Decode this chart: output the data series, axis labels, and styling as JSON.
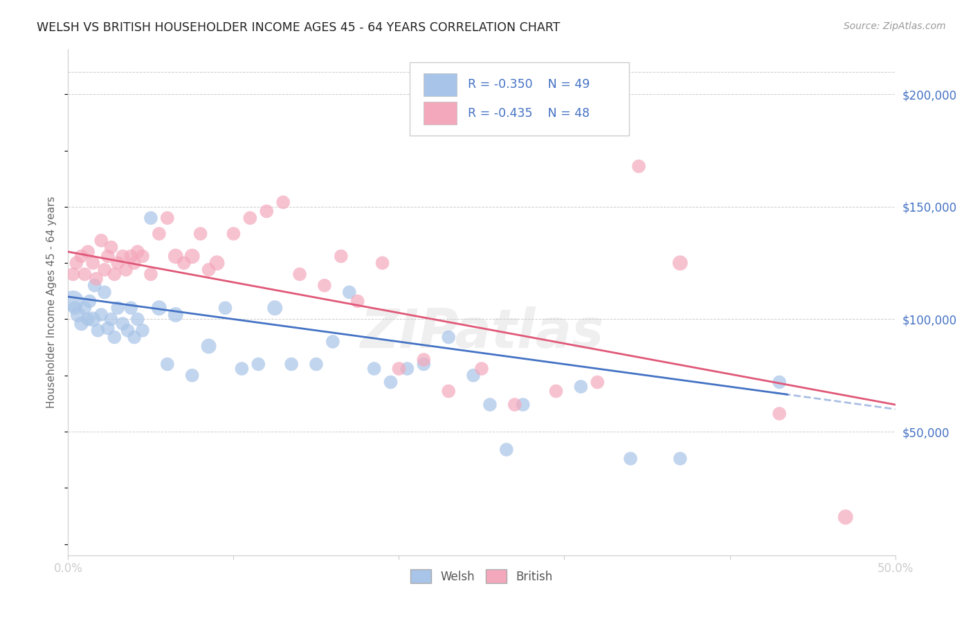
{
  "title": "WELSH VS BRITISH HOUSEHOLDER INCOME AGES 45 - 64 YEARS CORRELATION CHART",
  "source": "Source: ZipAtlas.com",
  "ylabel": "Householder Income Ages 45 - 64 years",
  "xlim": [
    0.0,
    0.5
  ],
  "ylim": [
    -5000,
    220000
  ],
  "ytick_labels_right": [
    "$50,000",
    "$100,000",
    "$150,000",
    "$200,000"
  ],
  "ytick_values_right": [
    50000,
    100000,
    150000,
    200000
  ],
  "welsh_color": "#a8c4e8",
  "british_color": "#f4a8bc",
  "welsh_line_color": "#4472c4",
  "british_line_color": "#e05878",
  "welsh_R": -0.35,
  "welsh_N": 49,
  "british_R": -0.435,
  "british_N": 48,
  "background_color": "#ffffff",
  "grid_color": "#cccccc",
  "watermark": "ZIPatlas",
  "welsh_x": [
    0.003,
    0.004,
    0.006,
    0.008,
    0.01,
    0.012,
    0.013,
    0.015,
    0.016,
    0.018,
    0.02,
    0.022,
    0.024,
    0.026,
    0.028,
    0.03,
    0.033,
    0.036,
    0.038,
    0.04,
    0.042,
    0.045,
    0.05,
    0.055,
    0.06,
    0.065,
    0.075,
    0.085,
    0.095,
    0.105,
    0.115,
    0.125,
    0.135,
    0.15,
    0.16,
    0.17,
    0.185,
    0.195,
    0.205,
    0.215,
    0.23,
    0.245,
    0.255,
    0.265,
    0.275,
    0.31,
    0.34,
    0.37,
    0.43
  ],
  "welsh_y": [
    108000,
    105000,
    102000,
    98000,
    105000,
    100000,
    108000,
    100000,
    115000,
    95000,
    102000,
    112000,
    96000,
    100000,
    92000,
    105000,
    98000,
    95000,
    105000,
    92000,
    100000,
    95000,
    145000,
    105000,
    80000,
    102000,
    75000,
    88000,
    105000,
    78000,
    80000,
    105000,
    80000,
    80000,
    90000,
    112000,
    78000,
    72000,
    78000,
    80000,
    92000,
    75000,
    62000,
    42000,
    62000,
    70000,
    38000,
    38000,
    72000
  ],
  "welsh_sizes": [
    500,
    200,
    250,
    220,
    200,
    200,
    200,
    250,
    200,
    200,
    200,
    200,
    200,
    200,
    200,
    200,
    200,
    200,
    200,
    200,
    200,
    200,
    200,
    250,
    200,
    250,
    200,
    250,
    200,
    200,
    200,
    250,
    200,
    200,
    200,
    200,
    200,
    200,
    200,
    200,
    200,
    200,
    200,
    200,
    200,
    200,
    200,
    200,
    200
  ],
  "british_x": [
    0.003,
    0.005,
    0.008,
    0.01,
    0.012,
    0.015,
    0.017,
    0.02,
    0.022,
    0.024,
    0.026,
    0.028,
    0.03,
    0.033,
    0.035,
    0.038,
    0.04,
    0.042,
    0.045,
    0.05,
    0.055,
    0.06,
    0.065,
    0.07,
    0.075,
    0.08,
    0.085,
    0.09,
    0.1,
    0.11,
    0.12,
    0.13,
    0.14,
    0.155,
    0.165,
    0.175,
    0.19,
    0.2,
    0.215,
    0.23,
    0.25,
    0.27,
    0.295,
    0.32,
    0.345,
    0.37,
    0.43,
    0.47
  ],
  "british_y": [
    120000,
    125000,
    128000,
    120000,
    130000,
    125000,
    118000,
    135000,
    122000,
    128000,
    132000,
    120000,
    125000,
    128000,
    122000,
    128000,
    125000,
    130000,
    128000,
    120000,
    138000,
    145000,
    128000,
    125000,
    128000,
    138000,
    122000,
    125000,
    138000,
    145000,
    148000,
    152000,
    120000,
    115000,
    128000,
    108000,
    125000,
    78000,
    82000,
    68000,
    78000,
    62000,
    68000,
    72000,
    168000,
    125000,
    58000,
    12000
  ],
  "british_sizes": [
    200,
    200,
    200,
    200,
    200,
    200,
    200,
    200,
    200,
    200,
    200,
    200,
    200,
    200,
    200,
    200,
    200,
    200,
    200,
    200,
    200,
    200,
    250,
    200,
    250,
    200,
    200,
    250,
    200,
    200,
    200,
    200,
    200,
    200,
    200,
    200,
    200,
    200,
    200,
    200,
    200,
    200,
    200,
    200,
    200,
    250,
    200,
    250
  ]
}
